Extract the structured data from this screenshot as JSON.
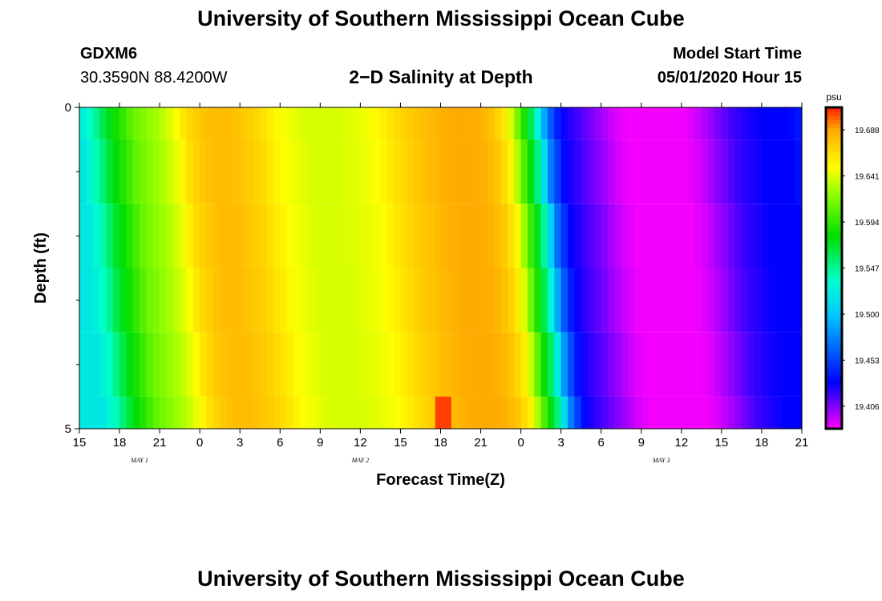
{
  "page": {
    "title_top": "University of Southern Mississippi Ocean Cube",
    "title_bottom": "University of Southern Mississippi Ocean Cube",
    "station_id": "GDXM6",
    "station_coords": "30.3590N 88.4200W",
    "model_label": "Model Start Time",
    "model_time": "05/01/2020 Hour 15"
  },
  "chart_data": {
    "type": "heatmap",
    "title": "2−D Salinity at Depth",
    "xlabel": "Forecast Time(Z)",
    "ylabel": "Depth (ft)",
    "x_tick_labels": [
      "15",
      "18",
      "21",
      "0",
      "3",
      "6",
      "9",
      "12",
      "15",
      "18",
      "21",
      "0",
      "3",
      "6",
      "9",
      "12",
      "15",
      "18",
      "21"
    ],
    "x_tick_hours": [
      0,
      3,
      6,
      9,
      12,
      15,
      18,
      21,
      24,
      27,
      30,
      33,
      36,
      39,
      42,
      45,
      48,
      51,
      54
    ],
    "day_labels": [
      {
        "text": "MAY 1",
        "hour": 4.5
      },
      {
        "text": "MAY 2",
        "hour": 21
      },
      {
        "text": "MAY 3",
        "hour": 43.5
      }
    ],
    "x_range_hours": [
      0,
      54
    ],
    "y_tick_labels": [
      "0",
      "5"
    ],
    "y_range": [
      0,
      5
    ],
    "y_minor_ticks": [
      1,
      2,
      3,
      4
    ],
    "colorbar": {
      "unit": "psu",
      "tick_labels": [
        "19.688",
        "19.641",
        "19.594",
        "19.547",
        "19.500",
        "19.453",
        "19.406"
      ],
      "tick_values": [
        19.688,
        19.641,
        19.594,
        19.547,
        19.5,
        19.453,
        19.406
      ],
      "range": [
        19.383,
        19.711
      ],
      "stops": [
        {
          "v": 19.383,
          "color": "#ff00ff"
        },
        {
          "v": 19.43,
          "color": "#0000ff"
        },
        {
          "v": 19.5,
          "color": "#00c8ff"
        },
        {
          "v": 19.535,
          "color": "#00ffcc"
        },
        {
          "v": 19.58,
          "color": "#00dd00"
        },
        {
          "v": 19.625,
          "color": "#99ff00"
        },
        {
          "v": 19.65,
          "color": "#ffff00"
        },
        {
          "v": 19.688,
          "color": "#ffaa00"
        },
        {
          "v": 19.711,
          "color": "#ff2200"
        }
      ]
    },
    "depth_levels": [
      0,
      1,
      2,
      3,
      4,
      5
    ],
    "profile_hours": [
      0,
      1,
      2,
      3,
      4,
      5,
      6,
      7,
      8,
      9,
      10,
      11,
      12,
      13,
      14,
      15,
      16,
      17,
      18,
      19,
      20,
      21,
      22,
      23,
      24,
      25,
      26,
      27,
      28,
      29,
      30,
      31,
      32,
      33,
      34,
      35,
      36,
      37,
      38,
      39,
      40,
      41,
      42,
      43,
      44,
      45,
      46,
      47,
      48,
      49,
      50,
      51,
      52,
      53,
      54
    ],
    "profile_values": [
      19.52,
      19.54,
      19.57,
      19.59,
      19.61,
      19.62,
      19.63,
      19.645,
      19.665,
      19.675,
      19.68,
      19.68,
      19.675,
      19.67,
      19.66,
      19.65,
      19.645,
      19.64,
      19.64,
      19.64,
      19.642,
      19.645,
      19.65,
      19.66,
      19.668,
      19.675,
      19.68,
      19.685,
      19.688,
      19.688,
      19.685,
      19.675,
      19.655,
      19.6,
      19.55,
      19.47,
      19.43,
      19.42,
      19.41,
      19.4,
      19.39,
      19.385,
      19.385,
      19.385,
      19.385,
      19.385,
      19.39,
      19.4,
      19.41,
      19.42,
      19.425,
      19.43,
      19.43,
      19.43,
      19.44
    ],
    "depth_time_shift_hours": [
      0,
      0.3,
      0.7,
      1.0,
      1.4,
      1.8
    ],
    "bottom_max_cell": {
      "start_hour": 26.6,
      "end_hour": 27.8,
      "depth": 5,
      "value": 19.706
    }
  }
}
